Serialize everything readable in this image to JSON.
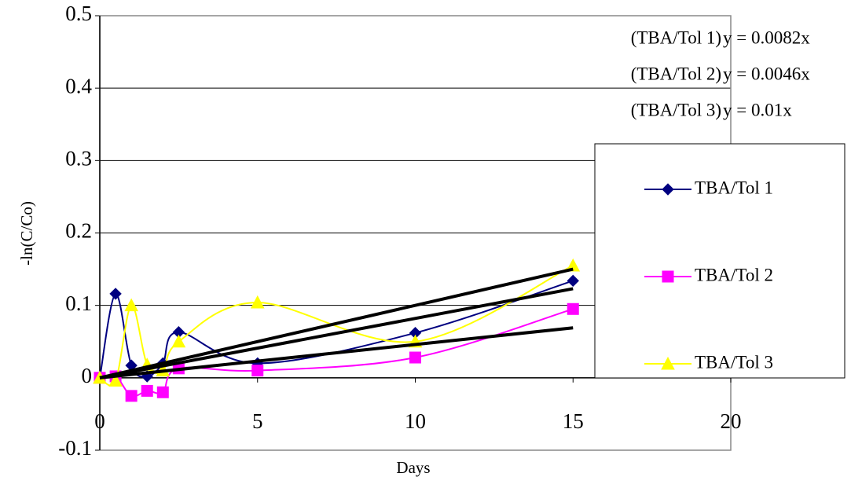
{
  "chart_data": {
    "type": "line",
    "x_label": "Days",
    "y_label": "-ln(C/Co)",
    "xlim": [
      0,
      20
    ],
    "ylim": [
      -0.1,
      0.5
    ],
    "xticks": [
      0,
      5,
      10,
      15,
      20
    ],
    "yticks": [
      -0.1,
      0,
      0.1,
      0.2,
      0.3,
      0.4,
      0.5
    ],
    "grid": true,
    "smooth": true,
    "x": [
      0,
      0.5,
      1,
      1.5,
      2,
      2.5,
      5,
      10,
      15
    ],
    "series": [
      {
        "name": "TBA/Tol 1",
        "color": "#000080",
        "marker": "diamond",
        "values": [
          0,
          0.116,
          0.017,
          0.002,
          0.02,
          0.063,
          0.02,
          0.062,
          0.134
        ]
      },
      {
        "name": "TBA/Tol 2",
        "color": "#ff00ff",
        "marker": "square",
        "values": [
          0,
          0.002,
          -0.025,
          -0.018,
          -0.02,
          0.013,
          0.01,
          0.028,
          0.095
        ]
      },
      {
        "name": "TBA/Tol 3",
        "color": "#ffff00",
        "marker": "triangle",
        "values": [
          0,
          -0.004,
          0.1,
          0.018,
          0.01,
          0.05,
          0.104,
          0.05,
          0.155
        ]
      }
    ],
    "trendlines": [
      {
        "series": "(TBA/Tol 1)",
        "equation": "y = 0.0082x",
        "slope": 0.0082
      },
      {
        "series": "(TBA/Tol 2)",
        "equation": "y = 0.0046x",
        "slope": 0.0046
      },
      {
        "series": "(TBA/Tol 3)",
        "equation": "y = 0.01x",
        "slope": 0.01
      }
    ]
  }
}
